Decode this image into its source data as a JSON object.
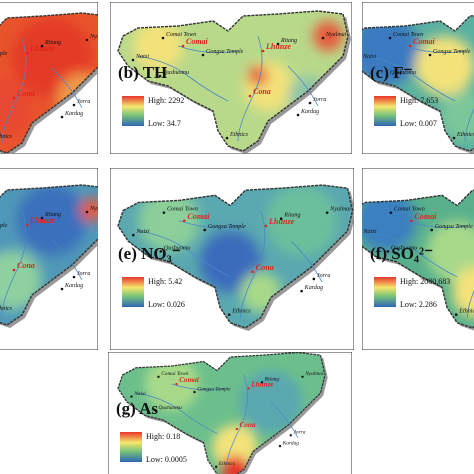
{
  "places": [
    "Comai",
    "Comai Town",
    "Gongsa Temple",
    "Lhunze",
    "Ritang",
    "Nyalmai",
    "Qushuomu",
    "Cona",
    "Jorra",
    "Kardag",
    "Ethnics",
    "Naixi"
  ],
  "panels": [
    {
      "label": "(b) TH",
      "legend_high": "High: 2292",
      "legend_low": "Low: 34.7"
    },
    {
      "label": "(c) F⁻",
      "legend_high": "High: 7.653",
      "legend_low": "Low: 0.007"
    },
    {
      "label": "(e) NO₃⁻",
      "legend_high": "High: 5.42",
      "legend_low": "Low: 0.026"
    },
    {
      "label": "(f) SO₄²⁻",
      "legend_high": "High: 2080.683",
      "legend_low": "Low: 2.286"
    },
    {
      "label": "(g) As",
      "legend_high": "High: 0.18",
      "legend_low": "Low: 0.0005"
    }
  ]
}
